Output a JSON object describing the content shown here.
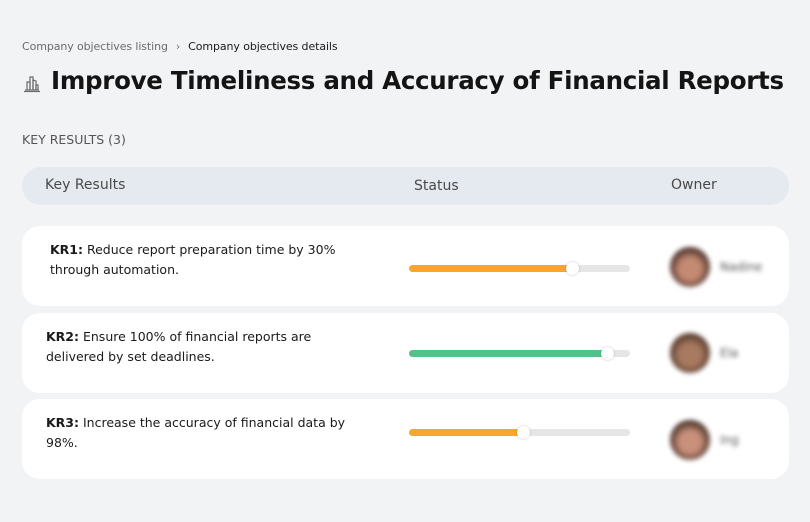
{
  "breadcrumb": {
    "items": [
      {
        "label": "Company objectives listing"
      },
      {
        "label": "Company objectives details"
      }
    ],
    "separator": "›"
  },
  "objective": {
    "icon": "building-icon",
    "title": "Improve Timeliness and Accuracy of Financial Reports"
  },
  "key_results_section": {
    "label": "KEY RESULTS (3)"
  },
  "table": {
    "headers": {
      "key_results": "Key Results",
      "status": "Status",
      "owner": "Owner"
    },
    "rows": [
      {
        "code": "KR1:",
        "text": " Reduce report preparation time by 30% through automation.",
        "progress": 74,
        "progress_color": "#f9a530",
        "owner_name": "Nadine",
        "avatar_colors": [
          "#c48a72",
          "#3a2420"
        ]
      },
      {
        "code": "KR2:",
        "text": " Ensure 100% of financial reports are delivered by set deadlines.",
        "progress": 90,
        "progress_color": "#52c28a",
        "owner_name": "Ela",
        "avatar_colors": [
          "#a87a60",
          "#4a3026"
        ]
      },
      {
        "code": "KR3:",
        "text": " Increase the accuracy of financial data by 98%.",
        "progress": 52,
        "progress_color": "#f9a530",
        "owner_name": "Ing",
        "avatar_colors": [
          "#c9907a",
          "#35221c"
        ]
      }
    ]
  },
  "colors": {
    "background": "#f2f3f5",
    "header_band": "#e5e9f0",
    "card": "#ffffff",
    "track": "#e6e6e6"
  }
}
